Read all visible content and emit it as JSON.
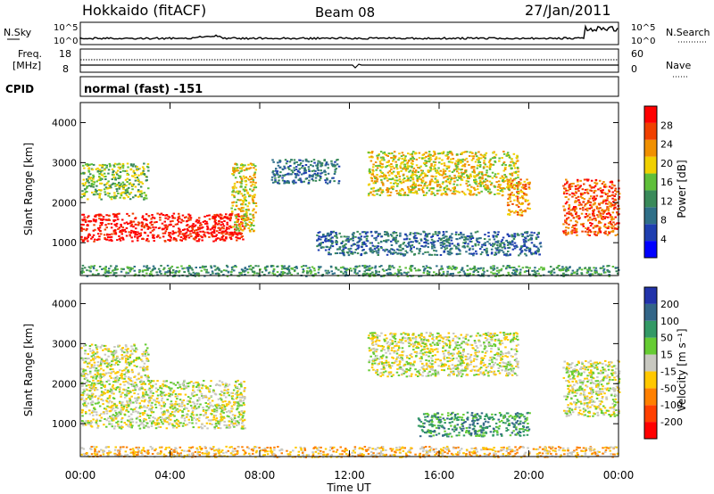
{
  "header": {
    "station": "Hokkaido (fitACF)",
    "beam": "Beam 08",
    "date": "27/Jan/2011"
  },
  "strip": {
    "nsky_label": "N.Sky",
    "nsearch_label": "N.Search",
    "noise_ticks": [
      "10^5",
      "10^0"
    ],
    "freq_label_top": "Freq.",
    "freq_label_unit": "[MHz]",
    "freq_ticks": [
      "18",
      "8"
    ],
    "nave_label": "Nave",
    "nave_ticks": [
      "60",
      "0"
    ],
    "cpid_label": "CPID",
    "cpid_text": "normal (fast) -151"
  },
  "xaxis": {
    "label": "Time UT",
    "ticks": [
      "00:00",
      "04:00",
      "08:00",
      "12:00",
      "16:00",
      "20:00",
      "00:00"
    ]
  },
  "colors": {
    "power": [
      "#0000ff",
      "#1f3fb0",
      "#2f6f88",
      "#3a8a5a",
      "#5fbf3a",
      "#f0d000",
      "#f09000",
      "#f04000",
      "#ff0000"
    ],
    "velocity": [
      "#ff0000",
      "#ff4000",
      "#ff8000",
      "#ffc800",
      "#c8c8c0",
      "#66cc33",
      "#339966",
      "#336688",
      "#2233aa"
    ]
  },
  "chart_data": [
    {
      "type": "heatmap",
      "title": "",
      "xlabel": "",
      "ylabel": "Slant Range [km]",
      "xlim": [
        0,
        24
      ],
      "ylim": [
        180,
        4500
      ],
      "yticks": [
        "1000",
        "2000",
        "3000",
        "4000"
      ],
      "colorbar": {
        "label": "Power [dB]",
        "ticks": [
          "28",
          "24",
          "20",
          "16",
          "12",
          "8",
          "4"
        ]
      },
      "regions": [
        {
          "t": [
            0.0,
            7.3
          ],
          "r": [
            1050,
            1750
          ],
          "level": 8
        },
        {
          "t": [
            0.0,
            3.0
          ],
          "r": [
            2100,
            3000
          ],
          "level": 4
        },
        {
          "t": [
            6.7,
            7.8
          ],
          "r": [
            1300,
            3000
          ],
          "level": 5
        },
        {
          "t": [
            8.5,
            11.5
          ],
          "r": [
            2500,
            3100
          ],
          "level": 2
        },
        {
          "t": [
            12.8,
            19.5
          ],
          "r": [
            2200,
            3300
          ],
          "level": 5
        },
        {
          "t": [
            19.0,
            20.0
          ],
          "r": [
            1700,
            2600
          ],
          "level": 6
        },
        {
          "t": [
            21.5,
            24.0
          ],
          "r": [
            1200,
            2600
          ],
          "level": 7
        },
        {
          "t": [
            10.5,
            20.5
          ],
          "r": [
            700,
            1300
          ],
          "level": 2
        },
        {
          "t": [
            0.0,
            24.0
          ],
          "r": [
            180,
            450
          ],
          "level": 3
        }
      ]
    },
    {
      "type": "heatmap",
      "title": "",
      "xlabel": "Time UT",
      "ylabel": "Slant Range [km]",
      "xlim": [
        0,
        24
      ],
      "ylim": [
        180,
        4500
      ],
      "yticks": [
        "1000",
        "2000",
        "3000",
        "4000"
      ],
      "colorbar": {
        "label": "Velocity [m s⁻¹]",
        "ticks": [
          "200",
          "100",
          "50",
          "15",
          "-15",
          "-50",
          "-100",
          "-200"
        ]
      },
      "regions": [
        {
          "t": [
            0.0,
            7.3
          ],
          "r": [
            900,
            2100
          ],
          "level": 4
        },
        {
          "t": [
            0.0,
            3.0
          ],
          "r": [
            2100,
            3000
          ],
          "level": 4
        },
        {
          "t": [
            12.8,
            19.5
          ],
          "r": [
            2200,
            3300
          ],
          "level": 4
        },
        {
          "t": [
            21.5,
            24.0
          ],
          "r": [
            1200,
            2600
          ],
          "level": 4
        },
        {
          "t": [
            15.0,
            20.0
          ],
          "r": [
            700,
            1300
          ],
          "level": 6
        },
        {
          "t": [
            0.0,
            24.0
          ],
          "r": [
            180,
            450
          ],
          "level": 3
        }
      ]
    }
  ]
}
